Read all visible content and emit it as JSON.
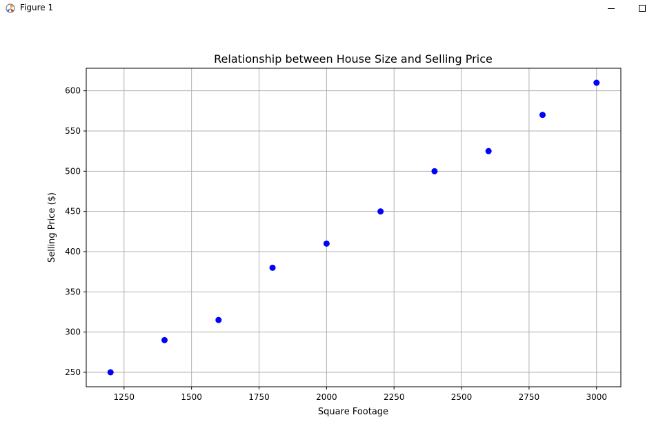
{
  "window": {
    "title": "Figure 1",
    "minimize_icon": "minimize-icon",
    "maximize_icon": "maximize-icon",
    "app_icon": "matplotlib-figure-icon"
  },
  "chart_data": {
    "type": "scatter",
    "title": "Relationship between House Size and Selling Price",
    "xlabel": "Square Footage",
    "ylabel": "Selling Price ($)",
    "x": [
      1200,
      1400,
      1600,
      1800,
      2000,
      2200,
      2400,
      2600,
      2800,
      3000
    ],
    "y": [
      250,
      290,
      315,
      380,
      410,
      450,
      500,
      525,
      570,
      610
    ],
    "xlim": [
      1110,
      3090
    ],
    "ylim": [
      232,
      628
    ],
    "xticks": [
      1250,
      1500,
      1750,
      2000,
      2250,
      2500,
      2750,
      3000
    ],
    "yticks": [
      250,
      300,
      350,
      400,
      450,
      500,
      550,
      600
    ],
    "grid": true,
    "marker_color": "#0000ff",
    "grid_color": "#b0b0b0"
  }
}
